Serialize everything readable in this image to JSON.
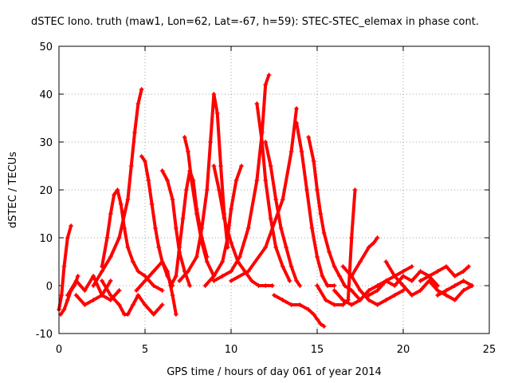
{
  "chart_data": {
    "type": "scatter",
    "title": "dSTEC Iono. truth (maw1, Lon=62, Lat=-67, h=59): STEC-STEC_elemax in phase cont.",
    "xlabel": "GPS time / hours of day 061 of year 2014",
    "ylabel": "dSTEC  / TECUs",
    "xlim": [
      0,
      25
    ],
    "ylim": [
      -10,
      50
    ],
    "xticks": [
      "0",
      "5",
      "10",
      "15",
      "20",
      "25"
    ],
    "yticks": [
      "-10",
      "0",
      "10",
      "20",
      "30",
      "40",
      "50"
    ],
    "grid": true,
    "marker": "plus",
    "color": "#ff0000",
    "series": [
      {
        "x": [
          0.0,
          0.15,
          0.3,
          0.5,
          0.7
        ],
        "y": [
          -5,
          -2,
          4,
          10,
          12.5
        ]
      },
      {
        "x": [
          0.1,
          0.3,
          0.5,
          0.7,
          0.9,
          1.1
        ],
        "y": [
          -6,
          -5,
          -3,
          -1,
          0,
          2
        ]
      },
      {
        "x": [
          0.5,
          1.0,
          1.5,
          2.0,
          2.5,
          3.0
        ],
        "y": [
          -2,
          1,
          -1,
          2,
          -2,
          1
        ]
      },
      {
        "x": [
          1.0,
          1.5,
          2.0,
          2.5,
          3.0,
          3.5
        ],
        "y": [
          -2,
          -4,
          -3,
          -2,
          -3,
          -1
        ]
      },
      {
        "x": [
          2.5,
          2.8,
          3.0,
          3.2,
          3.4,
          3.6,
          3.8,
          4.0,
          4.3,
          4.6,
          5.0,
          5.5,
          6.0
        ],
        "y": [
          4,
          10,
          15,
          19,
          20,
          17,
          12,
          8,
          5,
          3,
          2,
          0,
          -1
        ]
      },
      {
        "x": [
          2.0,
          2.5,
          3.0,
          3.5,
          4.0,
          4.2,
          4.4,
          4.6,
          4.8
        ],
        "y": [
          0,
          3,
          6,
          10,
          18,
          25,
          32,
          38,
          41
        ]
      },
      {
        "x": [
          4.8,
          5.0,
          5.2,
          5.4,
          5.6,
          5.8,
          6.0,
          6.3,
          6.6
        ],
        "y": [
          27,
          26,
          22,
          17,
          12,
          8,
          5,
          2,
          0
        ]
      },
      {
        "x": [
          2.5,
          3.0,
          3.5,
          3.8,
          4.0,
          4.3,
          4.6,
          5.0,
          5.5,
          6.0
        ],
        "y": [
          1,
          -2,
          -4,
          -6,
          -6,
          -4,
          -2,
          -4,
          -6,
          -4
        ]
      },
      {
        "x": [
          4.5,
          5.0,
          5.5,
          6.0,
          6.3,
          6.6,
          6.8
        ],
        "y": [
          -1,
          1,
          3,
          5,
          3,
          -2,
          -6
        ]
      },
      {
        "x": [
          6.0,
          6.3,
          6.6,
          6.8,
          7.0,
          7.3,
          7.6
        ],
        "y": [
          24,
          22,
          18,
          12,
          7,
          3,
          0
        ]
      },
      {
        "x": [
          6.5,
          6.8,
          7.0,
          7.2,
          7.4,
          7.6,
          7.8,
          8.0,
          8.3,
          8.6
        ],
        "y": [
          0,
          2,
          8,
          14,
          20,
          24,
          22,
          16,
          10,
          6
        ]
      },
      {
        "x": [
          7.3,
          7.5,
          7.7,
          8.0,
          8.3,
          8.6,
          9.0
        ],
        "y": [
          31,
          28,
          22,
          15,
          9,
          5,
          2
        ]
      },
      {
        "x": [
          7.0,
          7.5,
          8.0,
          8.3,
          8.6,
          8.8,
          9.0,
          9.2,
          9.4,
          9.6,
          9.8
        ],
        "y": [
          1,
          3,
          6,
          12,
          20,
          30,
          40,
          36,
          25,
          15,
          8
        ]
      },
      {
        "x": [
          9.0,
          9.3,
          9.6,
          10.0,
          10.4,
          10.8,
          11.2,
          11.6,
          12.0,
          12.4
        ],
        "y": [
          25,
          20,
          14,
          9,
          5,
          3,
          1,
          0,
          0,
          0
        ]
      },
      {
        "x": [
          8.5,
          9.0,
          9.5,
          9.8,
          10.0,
          10.3,
          10.6
        ],
        "y": [
          0,
          2,
          5,
          10,
          16,
          22,
          25
        ]
      },
      {
        "x": [
          9.0,
          9.5,
          10.0,
          10.5,
          11.0,
          11.5,
          11.8,
          12.0,
          12.2
        ],
        "y": [
          1,
          2,
          3,
          6,
          12,
          22,
          32,
          42,
          44
        ]
      },
      {
        "x": [
          11.5,
          11.8,
          12.0,
          12.3,
          12.6,
          13.0,
          13.4
        ],
        "y": [
          38,
          30,
          22,
          14,
          8,
          4,
          1
        ]
      },
      {
        "x": [
          12.0,
          12.3,
          12.6,
          12.9,
          13.2,
          13.5,
          13.8,
          14.0
        ],
        "y": [
          30,
          25,
          18,
          12,
          8,
          4,
          1,
          0
        ]
      },
      {
        "x": [
          10.0,
          11.0,
          12.0,
          13.0,
          13.5,
          13.8
        ],
        "y": [
          1,
          3,
          8,
          18,
          28,
          37
        ]
      },
      {
        "x": [
          13.8,
          14.1,
          14.4,
          14.7,
          15.0,
          15.3,
          15.6,
          16.0
        ],
        "y": [
          34,
          28,
          20,
          12,
          6,
          2,
          0,
          0
        ]
      },
      {
        "x": [
          12.5,
          13.0,
          13.5,
          14.0,
          14.5,
          14.8,
          15.0,
          15.2,
          15.4
        ],
        "y": [
          -2,
          -3,
          -4,
          -4,
          -5,
          -6,
          -7,
          -8,
          -8.5
        ]
      },
      {
        "x": [
          14.5,
          14.8,
          15.0,
          15.2,
          15.4,
          15.7,
          16.0,
          16.3,
          16.6,
          17.0,
          17.5
        ],
        "y": [
          31,
          26,
          20,
          15,
          11,
          7,
          4,
          2,
          0,
          -1,
          -3
        ]
      },
      {
        "x": [
          15.0,
          15.5,
          16.0,
          16.5,
          16.8,
          17.0,
          17.2
        ],
        "y": [
          0,
          -3,
          -4,
          -4,
          -3,
          10,
          20
        ]
      },
      {
        "x": [
          16.0,
          16.5,
          17.0,
          17.5,
          18.0,
          18.5,
          19.0,
          19.5,
          20.0,
          20.5
        ],
        "y": [
          -1,
          -3,
          -4,
          -3,
          -1,
          0,
          1,
          2,
          3,
          4
        ]
      },
      {
        "x": [
          17.0,
          17.5,
          18.0,
          18.3,
          18.5
        ],
        "y": [
          2,
          5,
          8,
          9,
          10
        ]
      },
      {
        "x": [
          16.5,
          17.0,
          17.5,
          18.0,
          18.5,
          19.0,
          19.5,
          20.0
        ],
        "y": [
          4,
          2,
          -1,
          -3,
          -4,
          -3,
          -2,
          -1
        ]
      },
      {
        "x": [
          18.0,
          18.5,
          19.0,
          19.5,
          20.0,
          20.5,
          21.0,
          21.5,
          22.0
        ],
        "y": [
          -2,
          -1,
          1,
          0,
          2,
          1,
          3,
          2,
          0
        ]
      },
      {
        "x": [
          19.0,
          19.5,
          20.0,
          20.5,
          21.0,
          21.5,
          22.0,
          22.5,
          23.0,
          23.5,
          24.0
        ],
        "y": [
          5,
          2,
          0,
          -2,
          -1,
          1,
          -1,
          -2,
          -3,
          -1,
          0
        ]
      },
      {
        "x": [
          21.0,
          21.5,
          22.0,
          22.5,
          23.0,
          23.5,
          23.8
        ],
        "y": [
          1,
          2,
          3,
          4,
          2,
          3,
          4
        ]
      },
      {
        "x": [
          22.0,
          22.5,
          23.0,
          23.5,
          24.0
        ],
        "y": [
          -2,
          -1,
          0,
          1,
          0
        ]
      }
    ]
  }
}
